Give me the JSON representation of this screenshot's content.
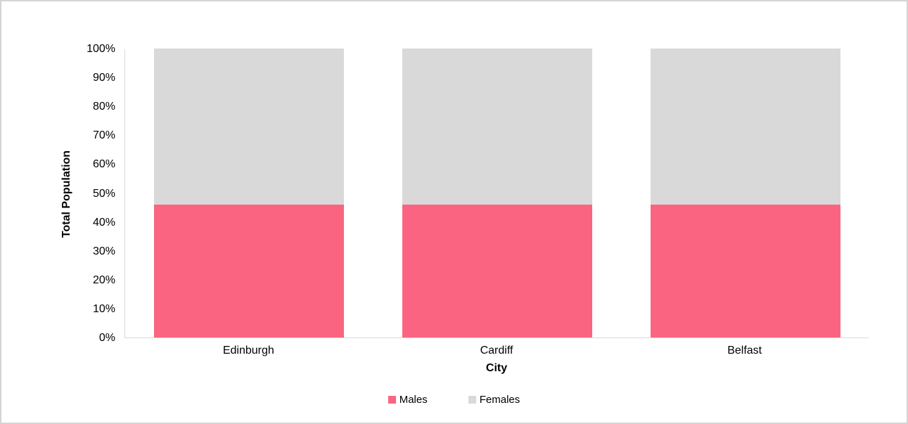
{
  "chart_data": {
    "type": "bar",
    "stacked": true,
    "percent": true,
    "title": "",
    "xlabel": "City",
    "ylabel": "Total Population",
    "categories": [
      "Edinburgh",
      "Cardiff",
      "Belfast"
    ],
    "series": [
      {
        "name": "Males",
        "color": "#FA6480",
        "values": [
          46,
          46,
          46
        ]
      },
      {
        "name": "Females",
        "color": "#D9D9D9",
        "values": [
          54,
          54,
          54
        ]
      }
    ],
    "ylim": [
      0,
      100
    ],
    "ytick_step": 10,
    "ytick_labels": [
      "0%",
      "10%",
      "20%",
      "30%",
      "40%",
      "50%",
      "60%",
      "70%",
      "80%",
      "90%",
      "100%"
    ],
    "grid": false,
    "legend_position": "bottom",
    "plot_background": "#FFFFFF",
    "axis_line_color": "#D9D9D9"
  }
}
